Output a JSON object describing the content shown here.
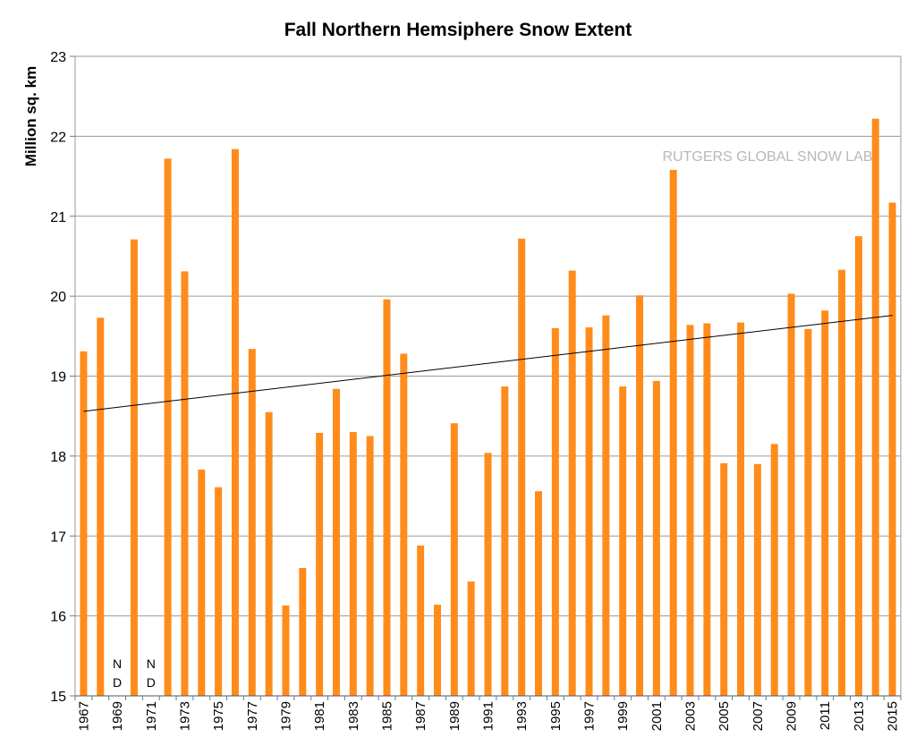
{
  "chart_data": {
    "type": "bar",
    "title": "Fall Northern Hemsiphere Snow Extent",
    "ylabel": "Million sq. km",
    "xlabel": "",
    "watermark": "RUTGERS GLOBAL SNOW LAB",
    "no_data_label": [
      "N",
      "D"
    ],
    "ylim": [
      15,
      23
    ],
    "yticks": [
      15,
      16,
      17,
      18,
      19,
      20,
      21,
      22,
      23
    ],
    "grid": true,
    "bar_color": "#ff8c1a",
    "trendline": {
      "x": [
        1967,
        2015
      ],
      "y": [
        18.56,
        19.76
      ],
      "color": "#000000"
    },
    "categories": [
      "1967",
      "1968",
      "1969",
      "1970",
      "1971",
      "1972",
      "1973",
      "1974",
      "1975",
      "1976",
      "1977",
      "1978",
      "1979",
      "1980",
      "1981",
      "1982",
      "1983",
      "1984",
      "1985",
      "1986",
      "1987",
      "1988",
      "1989",
      "1990",
      "1991",
      "1992",
      "1993",
      "1994",
      "1995",
      "1996",
      "1997",
      "1998",
      "1999",
      "2000",
      "2001",
      "2002",
      "2003",
      "2004",
      "2005",
      "2006",
      "2007",
      "2008",
      "2009",
      "2010",
      "2011",
      "2012",
      "2013",
      "2014",
      "2015"
    ],
    "tick_labels": [
      "1967",
      "1969",
      "1971",
      "1973",
      "1975",
      "1977",
      "1979",
      "1981",
      "1983",
      "1985",
      "1987",
      "1989",
      "1991",
      "1993",
      "1995",
      "1997",
      "1999",
      "2001",
      "2003",
      "2005",
      "2007",
      "2009",
      "2011",
      "2013",
      "2015"
    ],
    "values": [
      19.31,
      19.73,
      null,
      20.71,
      null,
      21.72,
      20.31,
      17.83,
      17.61,
      21.84,
      19.34,
      18.55,
      16.13,
      16.6,
      18.29,
      18.84,
      18.3,
      18.25,
      19.96,
      19.28,
      16.88,
      16.14,
      18.41,
      16.43,
      18.04,
      18.87,
      20.72,
      17.56,
      19.6,
      20.32,
      19.61,
      19.76,
      18.87,
      20.01,
      18.94,
      21.58,
      19.64,
      19.66,
      17.91,
      19.67,
      17.9,
      18.15,
      20.03,
      19.59,
      19.82,
      20.33,
      20.75,
      22.22,
      21.17
    ]
  }
}
